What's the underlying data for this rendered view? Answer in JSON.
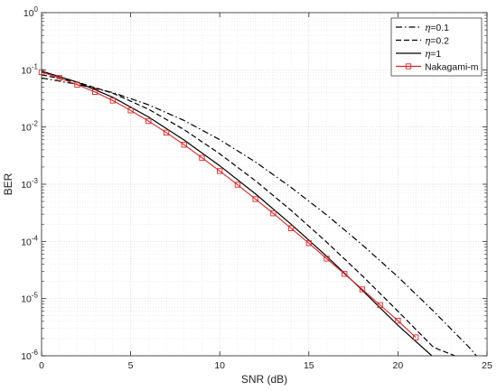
{
  "chart_data": {
    "type": "line",
    "xlabel": "SNR (dB)",
    "ylabel": "BER",
    "xlim": [
      0,
      25
    ],
    "ylim": [
      1e-06,
      1
    ],
    "yscale": "log",
    "grid": true,
    "legend_position": "top-right",
    "x_ticks": [
      "0",
      "5",
      "10",
      "15",
      "20",
      "25"
    ],
    "y_ticks": [
      {
        "base": "10",
        "exp": "-6"
      },
      {
        "base": "10",
        "exp": "-5"
      },
      {
        "base": "10",
        "exp": "-4"
      },
      {
        "base": "10",
        "exp": "-3"
      },
      {
        "base": "10",
        "exp": "-2"
      },
      {
        "base": "10",
        "exp": "-1"
      },
      {
        "base": "10",
        "exp": "0"
      }
    ],
    "series": [
      {
        "name": "η=0.1",
        "legend_symbol": "η",
        "legend_value": "=0.1",
        "style": "dashdot",
        "color": "#000000",
        "x": [
          0,
          2,
          4,
          6,
          8,
          10,
          12,
          14,
          16,
          18,
          20,
          22,
          24,
          24.4
        ],
        "y": [
          0.072,
          0.056,
          0.04,
          0.0245,
          0.013,
          0.006,
          0.00245,
          0.00088,
          0.00029,
          8.7e-05,
          2.4e-05,
          6e-06,
          1.4e-06,
          1e-06
        ]
      },
      {
        "name": "η=0.2",
        "legend_symbol": "η",
        "legend_value": "=0.2",
        "style": "dashed",
        "color": "#000000",
        "x": [
          0,
          2,
          4,
          6,
          8,
          10,
          12,
          14,
          16,
          18,
          20,
          22,
          23.2
        ],
        "y": [
          0.082,
          0.061,
          0.039,
          0.0205,
          0.009,
          0.0034,
          0.00115,
          0.00035,
          9.7e-05,
          2.5e-05,
          6e-06,
          1.4e-06,
          1e-06
        ]
      },
      {
        "name": "η=1",
        "legend_symbol": "η",
        "legend_value": "=1",
        "style": "solid",
        "color": "#000000",
        "x": [
          0,
          2,
          4,
          6,
          8,
          10,
          12,
          14,
          16,
          18,
          20,
          21.9
        ],
        "y": [
          0.095,
          0.061,
          0.033,
          0.015,
          0.0059,
          0.0021,
          0.00068,
          0.0002,
          5.5e-05,
          1.4e-05,
          3.4e-06,
          1e-06
        ]
      },
      {
        "name": "Nakagami-m",
        "legend_symbol": "",
        "legend_value": "Nakagami-m",
        "style": "solid-square-markers",
        "color": "#d62728",
        "x": [
          0,
          1,
          2,
          3,
          4,
          5,
          6,
          7,
          8,
          9,
          10,
          11,
          12,
          13,
          14,
          15,
          16,
          17,
          18,
          19,
          20,
          21
        ],
        "y": [
          0.091,
          0.072,
          0.055,
          0.041,
          0.029,
          0.0195,
          0.0127,
          0.008,
          0.0049,
          0.0029,
          0.0017,
          0.00098,
          0.00055,
          0.00031,
          0.00017,
          9.3e-05,
          5e-05,
          2.7e-05,
          1.45e-05,
          7.7e-06,
          4.1e-06,
          2.1e-06
        ]
      }
    ]
  }
}
